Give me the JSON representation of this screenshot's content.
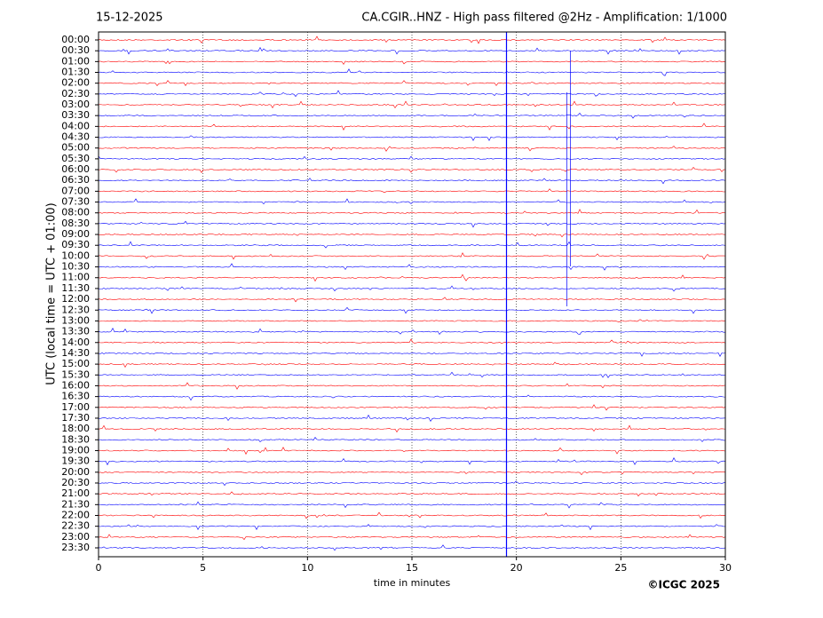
{
  "chart_data": {
    "type": "helicorder",
    "date": "15-12-2025",
    "title": "CA.CGIR..HNZ - High pass filtered @2Hz - Amplification: 1/1000",
    "ylabel": "UTC (local time = UTC + 01:00)",
    "xlabel": "time in minutes",
    "credit": "©ICGC 2025",
    "categories": [
      "00:00",
      "00:30",
      "01:00",
      "01:30",
      "02:00",
      "02:30",
      "03:00",
      "03:30",
      "04:00",
      "04:30",
      "05:00",
      "05:30",
      "06:00",
      "06:30",
      "07:00",
      "07:30",
      "08:00",
      "08:30",
      "09:00",
      "09:30",
      "10:00",
      "10:30",
      "11:00",
      "11:30",
      "12:00",
      "12:30",
      "13:00",
      "13:30",
      "14:00",
      "14:30",
      "15:00",
      "15:30",
      "16:00",
      "16:30",
      "17:00",
      "17:30",
      "18:00",
      "18:30",
      "19:00",
      "19:30",
      "20:00",
      "20:30",
      "21:00",
      "21:30",
      "22:00",
      "22:30",
      "23:00",
      "23:30"
    ],
    "colors": [
      "#ff0000",
      "#0000ff"
    ],
    "xlim": [
      0,
      30
    ],
    "xticks": [
      0,
      5,
      10,
      15,
      20,
      25,
      30
    ],
    "grid": true
  }
}
